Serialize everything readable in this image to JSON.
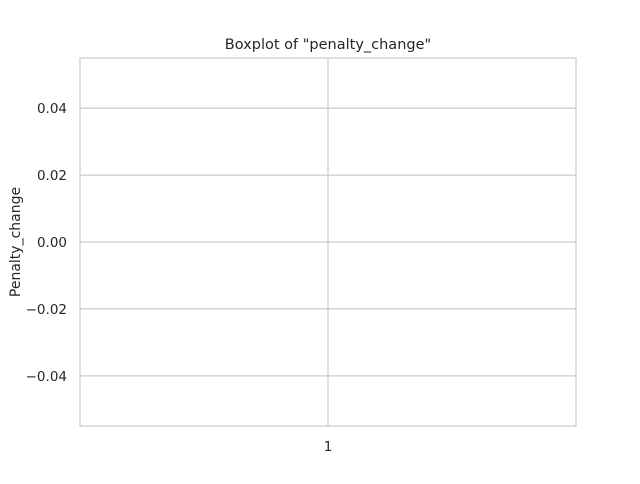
{
  "chart_data": {
    "type": "box",
    "title": "Boxplot of \"penalty_change\"",
    "xlabel": "",
    "ylabel": "Penalty_change",
    "categories": [
      "1"
    ],
    "ylim": [
      -0.055,
      0.055
    ],
    "yticks": [
      0.04,
      0.02,
      0.0,
      -0.02,
      -0.04
    ],
    "ytick_labels": [
      "0.04",
      "0.02",
      "0.00",
      "−0.02",
      "−0.04"
    ],
    "xtick_labels": [
      "1"
    ],
    "series": [
      {
        "values": []
      }
    ],
    "grid": true,
    "colors": {
      "grid": "#cccccc",
      "spine": "#cccccc",
      "text": "#262626",
      "background": "#ffffff"
    }
  }
}
